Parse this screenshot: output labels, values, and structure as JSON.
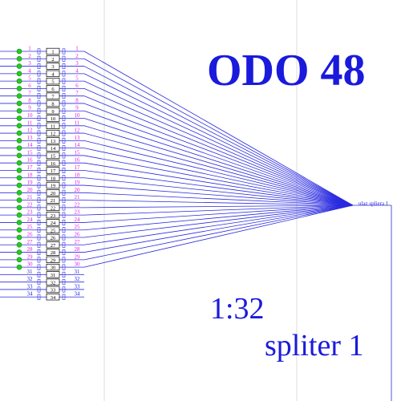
{
  "title": "ODO 48",
  "ratio": "1:32",
  "splitter_name": "spliter 1",
  "splitter_tag": "ulaz spliera 1",
  "rows": [
    {
      "left": "1",
      "box": "1",
      "right": "1",
      "connected": true
    },
    {
      "left": "2",
      "box": "2",
      "right": "2",
      "connected": true
    },
    {
      "left": "3",
      "box": "3",
      "right": "3",
      "connected": true
    },
    {
      "left": "4",
      "box": "4",
      "right": "4",
      "connected": true
    },
    {
      "left": "5",
      "box": "5",
      "right": "5",
      "connected": true
    },
    {
      "left": "6",
      "box": "6",
      "right": "6",
      "connected": true
    },
    {
      "left": "7",
      "box": "7",
      "right": "7",
      "connected": true
    },
    {
      "left": "8",
      "box": "8",
      "right": "8",
      "connected": true
    },
    {
      "left": "9",
      "box": "9",
      "right": "9",
      "connected": true
    },
    {
      "left": "10",
      "box": "10",
      "right": "10",
      "connected": true
    },
    {
      "left": "11",
      "box": "11",
      "right": "11",
      "connected": true
    },
    {
      "left": "12",
      "box": "12",
      "right": "12",
      "connected": true
    },
    {
      "left": "13",
      "box": "13",
      "right": "13",
      "connected": true
    },
    {
      "left": "14",
      "box": "14",
      "right": "14",
      "connected": true
    },
    {
      "left": "15",
      "box": "15",
      "right": "15",
      "connected": true
    },
    {
      "left": "16",
      "box": "16",
      "right": "16",
      "connected": true
    },
    {
      "left": "17",
      "box": "17",
      "right": "17",
      "connected": true
    },
    {
      "left": "18",
      "box": "18",
      "right": "18",
      "connected": true
    },
    {
      "left": "19",
      "box": "19",
      "right": "19",
      "connected": true
    },
    {
      "left": "20",
      "box": "20",
      "right": "20",
      "connected": true
    },
    {
      "left": "21",
      "box": "21",
      "right": "21",
      "connected": true
    },
    {
      "left": "22",
      "box": "22",
      "right": "22",
      "connected": true
    },
    {
      "left": "23",
      "box": "23",
      "right": "23",
      "connected": true
    },
    {
      "left": "24",
      "box": "24",
      "right": "24",
      "connected": true
    },
    {
      "left": "25",
      "box": "25",
      "right": "25",
      "connected": true
    },
    {
      "left": "26",
      "box": "26",
      "right": "26",
      "connected": true
    },
    {
      "left": "27",
      "box": "27",
      "right": "27",
      "connected": true
    },
    {
      "left": "28",
      "box": "28",
      "right": "28",
      "connected": true
    },
    {
      "left": "29",
      "box": "29",
      "right": "29",
      "connected": true
    },
    {
      "left": "30",
      "box": "30",
      "right": "30",
      "connected": true
    },
    {
      "left": "31",
      "box": "31",
      "right": "31",
      "connected": false
    },
    {
      "left": "32",
      "box": "32",
      "right": "32",
      "connected": false
    },
    {
      "left": "33",
      "box": "33",
      "right": "33",
      "connected": false
    },
    {
      "left": "34",
      "box": "34",
      "right": "34",
      "connected": false
    }
  ],
  "colors": {
    "title": "#1a1adc",
    "line": "#2a2ae0",
    "port_label": "#e020e0",
    "dot": "#22cc22",
    "dot_outline": "#0a8a0a",
    "box_stroke": "#000000",
    "box_text": "#000000",
    "unused_label": "#1a1adc",
    "guide": "#dcdcdc"
  }
}
